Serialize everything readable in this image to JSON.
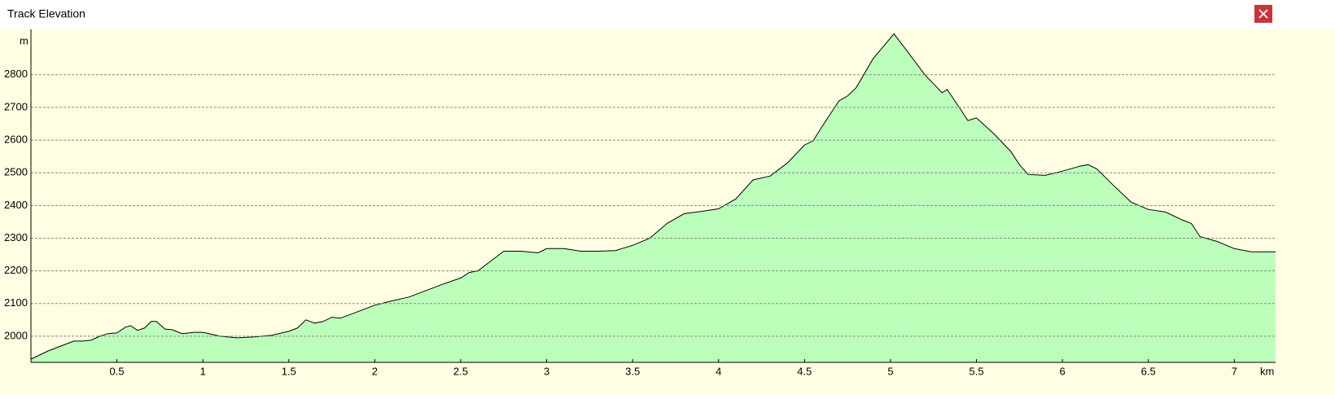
{
  "window": {
    "title": "Track Elevation"
  },
  "chart_data": {
    "type": "area",
    "y_label": "m",
    "x_label": "km",
    "fill_color": "#bbffbb",
    "line_color": "#000000",
    "grid": true,
    "xlim": [
      0,
      7.24
    ],
    "ylim": [
      1920,
      2939
    ],
    "xticks": [
      0.5,
      1,
      1.5,
      2,
      2.5,
      3,
      3.5,
      4,
      4.5,
      5,
      5.5,
      6,
      6.5,
      7
    ],
    "yticks": [
      2000,
      2100,
      2200,
      2300,
      2400,
      2500,
      2600,
      2700,
      2800
    ],
    "x": [
      0,
      0.1,
      0.2,
      0.25,
      0.3,
      0.35,
      0.4,
      0.45,
      0.5,
      0.55,
      0.58,
      0.62,
      0.66,
      0.7,
      0.73,
      0.78,
      0.82,
      0.88,
      0.95,
      1.0,
      1.1,
      1.2,
      1.3,
      1.4,
      1.5,
      1.55,
      1.6,
      1.65,
      1.7,
      1.75,
      1.8,
      1.9,
      2.0,
      2.1,
      2.2,
      2.3,
      2.4,
      2.5,
      2.55,
      2.6,
      2.65,
      2.7,
      2.75,
      2.85,
      2.95,
      3.0,
      3.1,
      3.2,
      3.3,
      3.4,
      3.5,
      3.6,
      3.7,
      3.8,
      3.9,
      4.0,
      4.1,
      4.2,
      4.3,
      4.4,
      4.5,
      4.55,
      4.6,
      4.7,
      4.75,
      4.8,
      4.9,
      5.02,
      5.1,
      5.2,
      5.3,
      5.33,
      5.4,
      5.45,
      5.5,
      5.6,
      5.7,
      5.75,
      5.8,
      5.9,
      6.0,
      6.1,
      6.15,
      6.2,
      6.3,
      6.4,
      6.5,
      6.6,
      6.7,
      6.75,
      6.8,
      6.9,
      7.0,
      7.1,
      7.24
    ],
    "values": [
      1930,
      1955,
      1975,
      1985,
      1985,
      1988,
      2000,
      2008,
      2010,
      2028,
      2032,
      2018,
      2025,
      2045,
      2045,
      2022,
      2020,
      2008,
      2012,
      2012,
      2000,
      1995,
      1998,
      2003,
      2015,
      2025,
      2050,
      2040,
      2045,
      2058,
      2055,
      2075,
      2095,
      2108,
      2120,
      2140,
      2160,
      2178,
      2195,
      2200,
      2220,
      2240,
      2260,
      2260,
      2255,
      2268,
      2268,
      2260,
      2260,
      2262,
      2278,
      2300,
      2345,
      2375,
      2382,
      2390,
      2420,
      2478,
      2490,
      2530,
      2585,
      2598,
      2640,
      2720,
      2735,
      2760,
      2850,
      2925,
      2870,
      2800,
      2745,
      2755,
      2700,
      2660,
      2668,
      2620,
      2565,
      2525,
      2495,
      2492,
      2505,
      2520,
      2525,
      2512,
      2460,
      2410,
      2388,
      2380,
      2355,
      2345,
      2305,
      2290,
      2268,
      2258,
      2258
    ]
  }
}
